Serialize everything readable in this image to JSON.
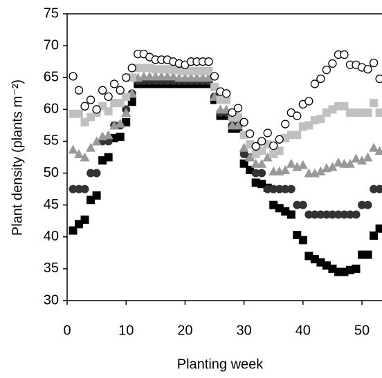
{
  "chart_data": {
    "type": "scatter",
    "x_label": "Planting week",
    "y_label": "Plant density (plants m⁻²)",
    "xlim": [
      0,
      53.4
    ],
    "xticks": [
      0,
      10,
      20,
      30,
      40,
      50
    ],
    "ylim": [
      30,
      75
    ],
    "yticks": [
      30,
      35,
      40,
      45,
      50,
      55,
      60,
      65,
      70,
      75
    ],
    "x": [
      1,
      2,
      3,
      4,
      5,
      6,
      7,
      8,
      9,
      10,
      11,
      12,
      13,
      14,
      15,
      16,
      17,
      18,
      19,
      20,
      21,
      22,
      23,
      24,
      25,
      26,
      27,
      28,
      29,
      30,
      31,
      32,
      33,
      34,
      35,
      36,
      37,
      38,
      39,
      40,
      41,
      42,
      43,
      44,
      45,
      46,
      47,
      48,
      49,
      50,
      51,
      52,
      53
    ],
    "series": [
      {
        "marker": "square",
        "color": "#000000",
        "values": [
          41,
          42,
          42.7,
          45.8,
          46.5,
          52,
          52.5,
          55.5,
          55.7,
          58,
          61.2,
          64,
          64,
          64,
          64,
          64,
          64,
          64,
          64,
          64,
          64,
          64,
          64,
          64,
          61.5,
          59,
          59,
          57,
          57,
          51.5,
          50.5,
          48.5,
          48.3,
          47.7,
          45,
          44.5,
          44,
          43.5,
          40.3,
          39.5,
          37,
          36.5,
          36,
          35.5,
          35,
          34.5,
          34.5,
          34.8,
          35,
          37.2,
          37.2,
          40.2,
          41.3
        ]
      },
      {
        "marker": "circle",
        "color": "#333333",
        "values": [
          47.5,
          47.5,
          47.5,
          50,
          50,
          55,
          55,
          57.5,
          57.5,
          60,
          62.5,
          64.5,
          64.5,
          64.5,
          64.5,
          64.5,
          64.5,
          64.5,
          64.5,
          64.5,
          64.5,
          64.5,
          64.5,
          64.5,
          62,
          59.5,
          59.5,
          57.5,
          57.5,
          53,
          52.5,
          50,
          50,
          47.5,
          47.5,
          47.5,
          47.5,
          47.5,
          45,
          45,
          43.5,
          43.5,
          43.5,
          43.5,
          43.5,
          43.5,
          43.5,
          43.5,
          43.5,
          45,
          45,
          47.5,
          47.5
        ]
      },
      {
        "marker": "triangle",
        "color": "#999999",
        "values": [
          53.7,
          53,
          52.5,
          54,
          55,
          55.8,
          56,
          57.5,
          57.8,
          59.5,
          62.5,
          65,
          65.2,
          65.2,
          65.2,
          65.2,
          65.2,
          65.2,
          65,
          65,
          65,
          65,
          65,
          65,
          62,
          60,
          60,
          57.5,
          57.5,
          54,
          52.5,
          51.5,
          51.5,
          52.5,
          50.3,
          50.3,
          50.5,
          51.5,
          51,
          51.3,
          50,
          50,
          50.3,
          50.8,
          51,
          51.7,
          51.5,
          51.5,
          52.3,
          52,
          52.5,
          54,
          53.5
        ]
      },
      {
        "marker": "square",
        "color": "#c0c0c0",
        "values": [
          59.3,
          59.3,
          58,
          58.8,
          59.5,
          60.5,
          59.7,
          61,
          61,
          62,
          65,
          66.5,
          66.5,
          66.5,
          66.3,
          66.3,
          66.3,
          66.2,
          66.2,
          66,
          66,
          66,
          66,
          66,
          63.5,
          61.5,
          61.5,
          58.8,
          58.8,
          56,
          54.5,
          53,
          53.5,
          54.5,
          53,
          53.5,
          55.5,
          56,
          56,
          57.3,
          57.5,
          58.3,
          58.5,
          59.5,
          60,
          60.5,
          60.5,
          59.5,
          59.5,
          59.5,
          59.5,
          61,
          59.5
        ]
      },
      {
        "marker": "circle-open",
        "color": "#000000",
        "values": [
          65.2,
          63,
          60.5,
          61.5,
          60,
          63,
          62,
          64,
          63,
          65,
          66.5,
          68.7,
          68.7,
          68.2,
          67.8,
          67.8,
          67.8,
          67.5,
          67.2,
          67,
          67.5,
          67.5,
          67.5,
          67.5,
          65.2,
          62.8,
          62.5,
          59.5,
          60.2,
          58,
          56.2,
          54.2,
          55,
          56.3,
          54.3,
          55.3,
          57.7,
          59.5,
          59,
          60.8,
          61.3,
          64,
          64.8,
          66.2,
          67.2,
          68.6,
          68.6,
          67,
          67,
          66.6,
          66.3,
          67.3,
          64.8
        ]
      }
    ]
  }
}
